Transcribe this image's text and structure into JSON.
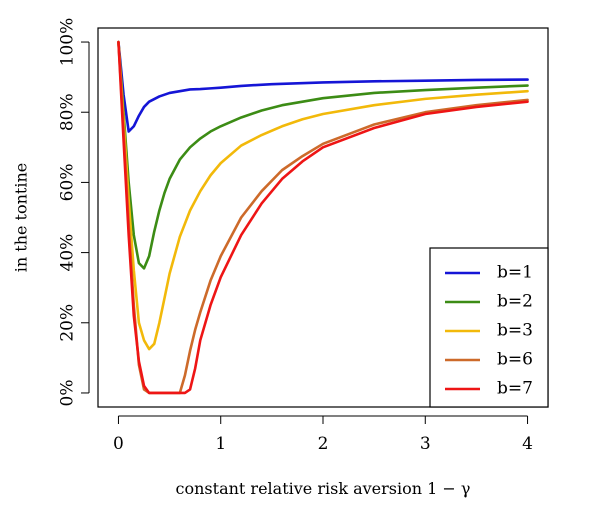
{
  "chart_data": {
    "type": "line",
    "title": "",
    "xlabel": "constant relative risk aversion 1 − γ",
    "ylabel": "in the tontine",
    "xlim": [
      -0.2,
      4.2
    ],
    "ylim": [
      -4,
      104
    ],
    "x_ticks": [
      0,
      1,
      2,
      3,
      4
    ],
    "x_tick_labels": [
      "0",
      "1",
      "2",
      "3",
      "4"
    ],
    "y_ticks": [
      0,
      20,
      40,
      60,
      80,
      100
    ],
    "y_tick_labels": [
      "0%",
      "20%",
      "40%",
      "60%",
      "80%",
      "100%"
    ],
    "legend_position": "bottom-right",
    "grid": false,
    "series": [
      {
        "name": "b=1",
        "color": "#1515d6",
        "points": [
          [
            0,
            100
          ],
          [
            0.05,
            85
          ],
          [
            0.1,
            74.5
          ],
          [
            0.15,
            76
          ],
          [
            0.2,
            79
          ],
          [
            0.25,
            81.5
          ],
          [
            0.3,
            83
          ],
          [
            0.4,
            84.5
          ],
          [
            0.5,
            85.5
          ],
          [
            0.6,
            86
          ],
          [
            0.7,
            86.5
          ],
          [
            0.8,
            86.6
          ],
          [
            0.9,
            86.8
          ],
          [
            1.0,
            87
          ],
          [
            1.2,
            87.5
          ],
          [
            1.5,
            88
          ],
          [
            2.0,
            88.5
          ],
          [
            2.5,
            88.8
          ],
          [
            3.0,
            89
          ],
          [
            3.5,
            89.2
          ],
          [
            4.0,
            89.3
          ]
        ]
      },
      {
        "name": "b=2",
        "color": "#3c8c15",
        "points": [
          [
            0,
            100
          ],
          [
            0.05,
            80
          ],
          [
            0.1,
            60
          ],
          [
            0.15,
            45
          ],
          [
            0.2,
            37
          ],
          [
            0.25,
            35.5
          ],
          [
            0.3,
            39
          ],
          [
            0.35,
            46
          ],
          [
            0.4,
            52
          ],
          [
            0.45,
            57
          ],
          [
            0.5,
            61
          ],
          [
            0.6,
            66.5
          ],
          [
            0.7,
            70
          ],
          [
            0.8,
            72.5
          ],
          [
            0.9,
            74.5
          ],
          [
            1.0,
            76
          ],
          [
            1.2,
            78.5
          ],
          [
            1.4,
            80.5
          ],
          [
            1.6,
            82
          ],
          [
            1.8,
            83
          ],
          [
            2.0,
            84
          ],
          [
            2.5,
            85.5
          ],
          [
            3.0,
            86.3
          ],
          [
            3.5,
            87
          ],
          [
            4.0,
            87.6
          ]
        ]
      },
      {
        "name": "b=3",
        "color": "#f2b90a",
        "points": [
          [
            0,
            100
          ],
          [
            0.05,
            78
          ],
          [
            0.1,
            55
          ],
          [
            0.15,
            35
          ],
          [
            0.2,
            20
          ],
          [
            0.25,
            15
          ],
          [
            0.3,
            12.5
          ],
          [
            0.35,
            14
          ],
          [
            0.4,
            20
          ],
          [
            0.45,
            27
          ],
          [
            0.5,
            34
          ],
          [
            0.6,
            44.5
          ],
          [
            0.7,
            52
          ],
          [
            0.8,
            57.5
          ],
          [
            0.9,
            62
          ],
          [
            1.0,
            65.5
          ],
          [
            1.2,
            70.5
          ],
          [
            1.4,
            73.5
          ],
          [
            1.6,
            76
          ],
          [
            1.8,
            78
          ],
          [
            2.0,
            79.5
          ],
          [
            2.5,
            82
          ],
          [
            3.0,
            83.8
          ],
          [
            3.5,
            85
          ],
          [
            4.0,
            86
          ]
        ]
      },
      {
        "name": "b=6",
        "color": "#cd6a2a",
        "points": [
          [
            0,
            100
          ],
          [
            0.05,
            75
          ],
          [
            0.1,
            48
          ],
          [
            0.15,
            25
          ],
          [
            0.2,
            8
          ],
          [
            0.25,
            1
          ],
          [
            0.3,
            0
          ],
          [
            0.6,
            0
          ],
          [
            0.65,
            5
          ],
          [
            0.7,
            12
          ],
          [
            0.75,
            18
          ],
          [
            0.8,
            23
          ],
          [
            0.9,
            32
          ],
          [
            1.0,
            39
          ],
          [
            1.2,
            50
          ],
          [
            1.4,
            57.5
          ],
          [
            1.6,
            63.5
          ],
          [
            1.8,
            67.5
          ],
          [
            2.0,
            71
          ],
          [
            2.5,
            76.5
          ],
          [
            3.0,
            80
          ],
          [
            3.5,
            82
          ],
          [
            4.0,
            83.5
          ]
        ]
      },
      {
        "name": "b=7",
        "color": "#ee1515",
        "points": [
          [
            0,
            100
          ],
          [
            0.05,
            72
          ],
          [
            0.1,
            45
          ],
          [
            0.15,
            22
          ],
          [
            0.2,
            9
          ],
          [
            0.25,
            2
          ],
          [
            0.3,
            0
          ],
          [
            0.65,
            0
          ],
          [
            0.7,
            1
          ],
          [
            0.75,
            7
          ],
          [
            0.8,
            15
          ],
          [
            0.9,
            25
          ],
          [
            1.0,
            33
          ],
          [
            1.2,
            45
          ],
          [
            1.4,
            54
          ],
          [
            1.6,
            61
          ],
          [
            1.8,
            66
          ],
          [
            2.0,
            70
          ],
          [
            2.5,
            75.5
          ],
          [
            3.0,
            79.5
          ],
          [
            3.5,
            81.5
          ],
          [
            4.0,
            83
          ]
        ]
      }
    ]
  }
}
